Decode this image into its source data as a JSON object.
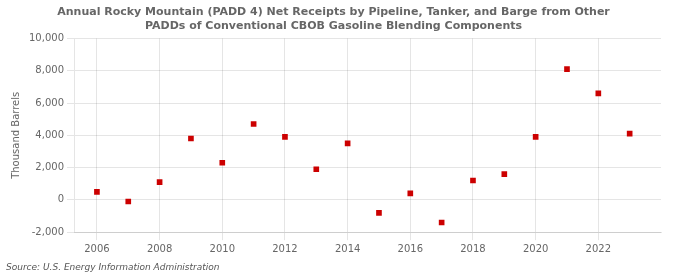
{
  "chart_data": {
    "type": "scatter",
    "title": "Annual Rocky Mountain (PADD 4) Net Receipts by Pipeline, Tanker, and Barge from Other\nPADDs of Conventional CBOB Gasoline Blending Components",
    "ylabel": "Thousand Barrels",
    "annotation": "Source: U.S. Energy Information Administration",
    "x": [
      2006,
      2007,
      2008,
      2009,
      2010,
      2011,
      2012,
      2013,
      2014,
      2015,
      2016,
      2017,
      2018,
      2019,
      2020,
      2021,
      2022,
      2023
    ],
    "values": [
      500,
      -100,
      1100,
      3800,
      2300,
      4700,
      3900,
      1900,
      3500,
      -800,
      400,
      -1400,
      1200,
      1600,
      3900,
      8100,
      6600,
      4100
    ],
    "color": "#cc0000",
    "marker": "square",
    "xlim": [
      2005.3,
      2024.0
    ],
    "xticks": [
      2006,
      2008,
      2010,
      2012,
      2014,
      2016,
      2018,
      2020,
      2022
    ],
    "ylim": [
      -2000,
      10000
    ],
    "yticks": [
      {
        "value": -2000,
        "label": "-2,000"
      },
      0,
      {
        "value": 2000,
        "label": "2,000"
      },
      {
        "value": 4000,
        "label": "4,000"
      },
      {
        "value": 6000,
        "label": "6,000"
      },
      {
        "value": 8000,
        "label": "8,000"
      },
      {
        "value": 10000,
        "label": "10,000"
      }
    ],
    "grid": true
  }
}
